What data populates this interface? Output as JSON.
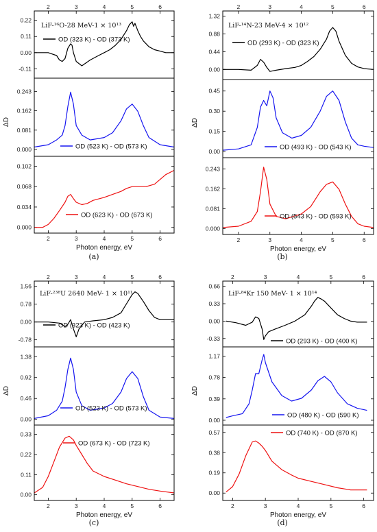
{
  "colors": {
    "black": "#000000",
    "blue": "#1515f0",
    "red": "#ee1111"
  },
  "chart_data": [
    {
      "type": "line",
      "sub_label": "(a)",
      "xlabel": "Photon energy, eV",
      "ylabel": "ΔD",
      "xlim": [
        1.5,
        6.5
      ],
      "bottom_ticks": [
        "2",
        "3",
        "4",
        "5",
        "6"
      ],
      "top_ticks": [
        "2",
        "3",
        "4",
        "5",
        "6"
      ],
      "panels": [
        {
          "title": "LiF-¹⁶O-28 MeV-1 × 10¹³",
          "legend": "OD (323 K) - OD (373 K)",
          "color": "#000000",
          "ylim": [
            -0.16,
            0.27
          ],
          "yticks": [
            "-0.11",
            "0.00",
            "0.11",
            "0.22"
          ],
          "ytick_values": [
            -0.11,
            0.0,
            0.11,
            0.22
          ],
          "x": [
            1.5,
            2.0,
            2.3,
            2.4,
            2.5,
            2.6,
            2.7,
            2.8,
            2.85,
            2.9,
            3.0,
            3.2,
            3.5,
            3.8,
            4.0,
            4.2,
            4.4,
            4.6,
            4.8,
            4.9,
            5.0,
            5.05,
            5.1,
            5.2,
            5.3,
            5.4,
            5.6,
            5.8,
            6.0,
            6.2,
            6.5
          ],
          "y": [
            0.0,
            0.0,
            -0.02,
            -0.05,
            -0.06,
            -0.04,
            0.03,
            0.06,
            0.05,
            0.0,
            -0.06,
            -0.09,
            -0.05,
            -0.02,
            0.0,
            0.02,
            0.05,
            0.09,
            0.15,
            0.19,
            0.21,
            0.18,
            0.2,
            0.15,
            0.11,
            0.08,
            0.04,
            0.02,
            0.01,
            0.0,
            0.0
          ]
        },
        {
          "title": "",
          "legend": "OD (523 K) - OD (573 K)",
          "color": "#1515f0",
          "ylim": [
            -0.02,
            0.29
          ],
          "yticks": [
            "0.000",
            "0.081",
            "0.162",
            "0.243"
          ],
          "ytick_values": [
            0.0,
            0.081,
            0.162,
            0.243
          ],
          "x": [
            1.5,
            2.0,
            2.3,
            2.5,
            2.6,
            2.7,
            2.8,
            2.9,
            3.0,
            3.2,
            3.5,
            4.0,
            4.3,
            4.6,
            4.8,
            5.0,
            5.2,
            5.4,
            5.6,
            6.0,
            6.5
          ],
          "y": [
            0.01,
            0.02,
            0.04,
            0.06,
            0.1,
            0.18,
            0.24,
            0.19,
            0.1,
            0.06,
            0.04,
            0.05,
            0.07,
            0.12,
            0.17,
            0.19,
            0.16,
            0.1,
            0.05,
            0.02,
            0.01
          ]
        },
        {
          "title": "",
          "legend": "OD (623 K) - OD (673 K)",
          "color": "#ee1111",
          "ylim": [
            -0.006,
            0.115
          ],
          "yticks": [
            "0.000",
            "0.034",
            "0.068",
            "0.102"
          ],
          "ytick_values": [
            0.0,
            0.034,
            0.068,
            0.102
          ],
          "x": [
            1.5,
            1.8,
            2.0,
            2.2,
            2.4,
            2.6,
            2.7,
            2.8,
            2.9,
            3.0,
            3.2,
            3.4,
            3.6,
            4.0,
            4.3,
            4.6,
            4.8,
            5.0,
            5.2,
            5.5,
            5.8,
            6.0,
            6.2,
            6.5
          ],
          "y": [
            0.0,
            0.0,
            0.005,
            0.015,
            0.028,
            0.042,
            0.052,
            0.055,
            0.048,
            0.042,
            0.038,
            0.04,
            0.045,
            0.05,
            0.055,
            0.06,
            0.065,
            0.068,
            0.068,
            0.068,
            0.072,
            0.08,
            0.088,
            0.095
          ]
        }
      ]
    },
    {
      "type": "line",
      "sub_label": "(b)",
      "xlabel": "Photon energy, eV",
      "ylabel": "ΔD",
      "xlim": [
        1.5,
        6.3
      ],
      "bottom_ticks": [
        "2",
        "3",
        "4",
        "5",
        "6"
      ],
      "top_ticks": [
        "2",
        "3",
        "4",
        "5",
        "6"
      ],
      "panels": [
        {
          "title": "LiF-¹⁴N-23 MeV-4 × 10¹²",
          "legend": "OD (293 K) - OD (323 K)",
          "color": "#000000",
          "ylim": [
            -0.2,
            1.4
          ],
          "yticks": [
            "0.00",
            "0.44",
            "0.88",
            "1.32"
          ],
          "ytick_values": [
            0.0,
            0.44,
            0.88,
            1.32
          ],
          "x": [
            1.5,
            2.0,
            2.4,
            2.6,
            2.7,
            2.8,
            2.9,
            3.0,
            3.2,
            3.5,
            3.8,
            4.0,
            4.2,
            4.4,
            4.6,
            4.8,
            4.9,
            5.0,
            5.1,
            5.2,
            5.4,
            5.6,
            5.8,
            6.0,
            6.3
          ],
          "y": [
            0.0,
            0.0,
            -0.02,
            0.1,
            0.25,
            0.18,
            0.05,
            -0.05,
            -0.02,
            0.02,
            0.05,
            0.1,
            0.2,
            0.32,
            0.5,
            0.75,
            0.95,
            1.04,
            0.95,
            0.7,
            0.35,
            0.15,
            0.06,
            0.02,
            0.0
          ]
        },
        {
          "title": "",
          "legend": "OD (493 K) - OD (543 K)",
          "color": "#1515f0",
          "ylim": [
            -0.03,
            0.52
          ],
          "yticks": [
            "0.00",
            "0.15",
            "0.30",
            "0.45"
          ],
          "ytick_values": [
            0.0,
            0.15,
            0.3,
            0.45
          ],
          "x": [
            1.5,
            2.0,
            2.4,
            2.6,
            2.7,
            2.8,
            2.9,
            3.0,
            3.1,
            3.2,
            3.4,
            3.7,
            4.0,
            4.3,
            4.6,
            4.8,
            5.0,
            5.2,
            5.4,
            5.6,
            5.8,
            6.0,
            6.3
          ],
          "y": [
            0.01,
            0.02,
            0.05,
            0.18,
            0.33,
            0.38,
            0.34,
            0.45,
            0.4,
            0.25,
            0.14,
            0.1,
            0.12,
            0.18,
            0.3,
            0.41,
            0.45,
            0.38,
            0.22,
            0.1,
            0.05,
            0.04,
            0.03
          ]
        },
        {
          "title": "",
          "legend": "OD (543 K) - OD (593 K)",
          "color": "#ee1111",
          "ylim": [
            -0.015,
            0.28
          ],
          "yticks": [
            "0.000",
            "0.081",
            "0.162",
            "0.243"
          ],
          "ytick_values": [
            0.0,
            0.081,
            0.162,
            0.243
          ],
          "x": [
            1.5,
            2.0,
            2.4,
            2.6,
            2.7,
            2.8,
            2.9,
            3.0,
            3.2,
            3.5,
            4.0,
            4.3,
            4.6,
            4.8,
            5.0,
            5.2,
            5.4,
            5.6,
            5.8,
            6.0,
            6.3
          ],
          "y": [
            0.005,
            0.01,
            0.03,
            0.07,
            0.15,
            0.25,
            0.2,
            0.1,
            0.05,
            0.04,
            0.06,
            0.09,
            0.15,
            0.18,
            0.19,
            0.16,
            0.1,
            0.05,
            0.02,
            0.01,
            0.005
          ]
        }
      ]
    },
    {
      "type": "line",
      "sub_label": "(c)",
      "xlabel": "Photon energy, eV",
      "ylabel": "ΔD",
      "xlim": [
        1.5,
        6.5
      ],
      "bottom_ticks": [
        "2",
        "3",
        "4",
        "5",
        "6"
      ],
      "top_ticks": [
        "2",
        "3",
        "4",
        "5",
        "6"
      ],
      "panels": [
        {
          "title": "LiF-²³⁸U 2640 MeV- 1 × 10¹¹",
          "legend": "OD (323 K) - OD (423 K)",
          "color": "#000000",
          "ylim": [
            -1.0,
            1.7
          ],
          "yticks": [
            "-0.78",
            "0.00",
            "0.78",
            "1.56"
          ],
          "ytick_values": [
            -0.78,
            0.0,
            0.78,
            1.56
          ],
          "x": [
            1.5,
            2.0,
            2.4,
            2.6,
            2.7,
            2.8,
            2.9,
            3.0,
            3.1,
            3.3,
            3.6,
            4.0,
            4.3,
            4.6,
            4.8,
            5.0,
            5.1,
            5.2,
            5.4,
            5.6,
            5.8,
            6.0,
            6.5
          ],
          "y": [
            0.0,
            0.0,
            -0.05,
            -0.2,
            -0.1,
            0.1,
            -0.3,
            -0.65,
            -0.3,
            0.0,
            0.05,
            0.1,
            0.2,
            0.4,
            0.8,
            1.2,
            1.32,
            1.25,
            0.9,
            0.5,
            0.2,
            0.1,
            0.1
          ]
        },
        {
          "title": "",
          "legend": "OD (523 K) - OD (573 K)",
          "color": "#1515f0",
          "ylim": [
            -0.08,
            1.55
          ],
          "yticks": [
            "0.00",
            "0.46",
            "0.92",
            "1.38"
          ],
          "ytick_values": [
            0.0,
            0.46,
            0.92,
            1.38
          ],
          "x": [
            1.5,
            2.0,
            2.3,
            2.5,
            2.6,
            2.7,
            2.8,
            2.9,
            3.0,
            3.2,
            3.5,
            4.0,
            4.3,
            4.6,
            4.8,
            5.0,
            5.2,
            5.4,
            5.6,
            6.0,
            6.5
          ],
          "y": [
            0.02,
            0.08,
            0.2,
            0.4,
            0.7,
            1.1,
            1.35,
            1.1,
            0.6,
            0.3,
            0.2,
            0.25,
            0.35,
            0.6,
            0.9,
            1.05,
            0.9,
            0.5,
            0.2,
            0.05,
            0.02
          ]
        },
        {
          "title": "",
          "legend": "OD (673 K) - OD (723 K)",
          "color": "#ee1111",
          "ylim": [
            -0.02,
            0.37
          ],
          "yticks": [
            "0.00",
            "0.11",
            "0.22",
            "0.33"
          ],
          "ytick_values": [
            0.0,
            0.11,
            0.22,
            0.33
          ],
          "x": [
            1.5,
            1.8,
            2.0,
            2.2,
            2.4,
            2.6,
            2.75,
            2.9,
            3.0,
            3.2,
            3.4,
            3.6,
            4.0,
            4.4,
            4.8,
            5.2,
            5.6,
            6.0,
            6.5
          ],
          "y": [
            0.01,
            0.04,
            0.1,
            0.18,
            0.26,
            0.31,
            0.32,
            0.3,
            0.27,
            0.22,
            0.17,
            0.13,
            0.1,
            0.08,
            0.06,
            0.045,
            0.03,
            0.02,
            0.01
          ]
        }
      ]
    },
    {
      "type": "line",
      "sub_label": "(d)",
      "xlabel": "Photon energy, eV",
      "ylabel": "ΔD",
      "xlim": [
        1.7,
        6.3
      ],
      "bottom_ticks": [
        "2",
        "3",
        "4",
        "5",
        "6"
      ],
      "top_ticks": [
        "2",
        "3",
        "4",
        "5",
        "6"
      ],
      "panels": [
        {
          "title": "LiF-⁸⁴Kr 150 MeV- 1 × 10¹⁴",
          "legend": "OD (293 K) - OD (400 K)",
          "color": "#000000",
          "ylim": [
            -0.45,
            0.72
          ],
          "yticks": [
            "-0.33",
            "0.00",
            "0.33",
            "0.66"
          ],
          "ytick_values": [
            -0.33,
            0.0,
            0.33,
            0.66
          ],
          "x": [
            1.8,
            2.1,
            2.4,
            2.6,
            2.7,
            2.8,
            2.9,
            2.95,
            3.0,
            3.1,
            3.3,
            3.6,
            3.9,
            4.2,
            4.4,
            4.5,
            4.6,
            4.7,
            4.8,
            5.0,
            5.2,
            5.4,
            5.6,
            5.8,
            6.1
          ],
          "y": [
            0.0,
            -0.03,
            -0.08,
            -0.02,
            0.08,
            0.05,
            -0.15,
            -0.35,
            -0.28,
            -0.2,
            -0.15,
            -0.08,
            0.0,
            0.12,
            0.28,
            0.38,
            0.45,
            0.42,
            0.38,
            0.25,
            0.12,
            0.05,
            0.0,
            -0.02,
            -0.02
          ]
        },
        {
          "title": "",
          "legend": "OD (480 K) - OD (590 K)",
          "color": "#1515f0",
          "ylim": [
            -0.05,
            1.3
          ],
          "yticks": [
            "0.00",
            "0.39",
            "0.78",
            "1.17"
          ],
          "ytick_values": [
            0.0,
            0.39,
            0.78,
            1.17
          ],
          "x": [
            1.8,
            2.0,
            2.3,
            2.5,
            2.6,
            2.7,
            2.8,
            2.9,
            2.95,
            3.0,
            3.2,
            3.5,
            3.8,
            4.1,
            4.4,
            4.6,
            4.8,
            5.0,
            5.2,
            5.5,
            5.8,
            6.1
          ],
          "y": [
            0.05,
            0.08,
            0.12,
            0.3,
            0.55,
            0.85,
            0.85,
            1.1,
            1.2,
            1.05,
            0.7,
            0.45,
            0.35,
            0.4,
            0.55,
            0.72,
            0.8,
            0.7,
            0.5,
            0.3,
            0.22,
            0.18
          ]
        },
        {
          "title": "",
          "legend": "OD (740 K) - OD (870 K)",
          "color": "#ee1111",
          "ylim": [
            -0.05,
            0.62
          ],
          "yticks": [
            "0.00",
            "0.19",
            "0.38",
            "0.57"
          ],
          "ytick_values": [
            0.0,
            0.19,
            0.38,
            0.57
          ],
          "x": [
            1.8,
            2.0,
            2.2,
            2.4,
            2.6,
            2.7,
            2.8,
            2.9,
            3.0,
            3.2,
            3.5,
            3.8,
            4.0,
            4.4,
            4.8,
            5.2,
            5.6,
            6.1
          ],
          "y": [
            0.01,
            0.06,
            0.18,
            0.35,
            0.48,
            0.49,
            0.47,
            0.44,
            0.4,
            0.3,
            0.22,
            0.17,
            0.14,
            0.11,
            0.08,
            0.05,
            0.03,
            0.03
          ]
        }
      ]
    }
  ]
}
